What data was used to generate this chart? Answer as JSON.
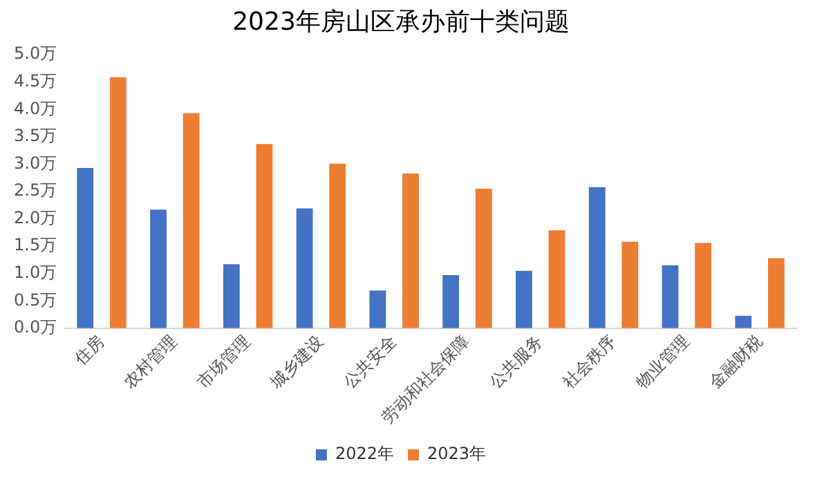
{
  "chart_data": {
    "type": "bar",
    "title": "2023年房山区承办前十类问题",
    "categories": [
      "住房",
      "农村管理",
      "市场管理",
      "城乡建设",
      "公共安全",
      "劳动和社会保障",
      "公共服务",
      "社会秩序",
      "物业管理",
      "金融财税"
    ],
    "series": [
      {
        "name": "2022年",
        "color": "#4472c4",
        "values": [
          2.93,
          2.17,
          1.17,
          2.19,
          0.69,
          0.97,
          1.05,
          2.58,
          1.15,
          0.23
        ]
      },
      {
        "name": "2023年",
        "color": "#ed7d31",
        "values": [
          4.59,
          3.93,
          3.37,
          3.01,
          2.83,
          2.55,
          1.79,
          1.58,
          1.56,
          1.28
        ]
      }
    ],
    "ylim": [
      0,
      5
    ],
    "yticks": [
      {
        "value": 0,
        "label": "0.0万"
      },
      {
        "value": 0.5,
        "label": "0.5万"
      },
      {
        "value": 1,
        "label": "1.0万"
      },
      {
        "value": 1.5,
        "label": "1.5万"
      },
      {
        "value": 2,
        "label": "2.0万"
      },
      {
        "value": 2.5,
        "label": "2.5万"
      },
      {
        "value": 3,
        "label": "3.0万"
      },
      {
        "value": 3.5,
        "label": "3.5万"
      },
      {
        "value": 4,
        "label": "4.0万"
      },
      {
        "value": 4.5,
        "label": "4.5万"
      },
      {
        "value": 5,
        "label": "5.0万"
      }
    ],
    "grid": false,
    "legend": "bottom"
  }
}
